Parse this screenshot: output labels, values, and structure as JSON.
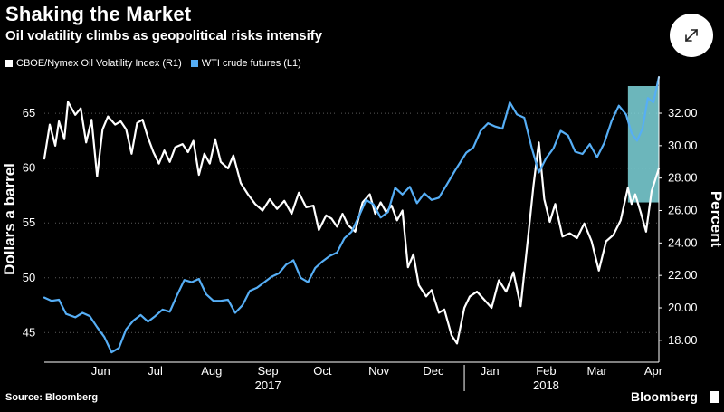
{
  "header": {
    "title": "Shaking the Market",
    "subtitle": "Oil volatility climbs as geopolitical risks intensify"
  },
  "controls": {
    "expand_icon": "expand-arrows-icon"
  },
  "footer": {
    "source": "Source: Bloomberg",
    "brand": "Bloomberg"
  },
  "colors": {
    "background": "#000000",
    "ovx": "#ffffff",
    "wti": "#56aef5",
    "highlight": "#7fd6dc"
  },
  "chart_data": {
    "type": "line",
    "title": "Shaking the Market",
    "subtitle": "Oil volatility climbs as geopolitical risks intensify",
    "grid": "horizontal dotted",
    "legend_position": "top-left",
    "x_start": "2017-05-15",
    "x_end": "2018-04-18",
    "x_ticks": [
      {
        "label": "Jun",
        "date": "2017-06-15"
      },
      {
        "label": "Jul",
        "date": "2017-07-15"
      },
      {
        "label": "Aug",
        "date": "2017-08-15"
      },
      {
        "label": "Sep",
        "date": "2017-09-15"
      },
      {
        "label": "Oct",
        "date": "2017-10-15"
      },
      {
        "label": "Nov",
        "date": "2017-11-15"
      },
      {
        "label": "Dec",
        "date": "2017-12-15"
      },
      {
        "label": "Jan",
        "date": "2018-01-15"
      },
      {
        "label": "Feb",
        "date": "2018-02-15"
      },
      {
        "label": "Mar",
        "date": "2018-03-15"
      },
      {
        "label": "Apr",
        "date": "2018-04-15"
      }
    ],
    "year_labels": [
      {
        "label": "2017",
        "date": "2017-09-15"
      },
      {
        "label": "2018",
        "date": "2018-02-15"
      }
    ],
    "year_divider_date": "2018-01-01",
    "highlight_range": [
      "2018-04-01",
      "2018-04-18"
    ],
    "axes": {
      "left": {
        "label": "Dollars a barrel",
        "min": 42.3,
        "max": 68.4,
        "ticks": [
          45,
          50,
          55,
          60,
          65
        ]
      },
      "right": {
        "label": "Percent",
        "min": 16.65,
        "max": 34.29,
        "ticks": [
          18.0,
          20.0,
          22.0,
          24.0,
          26.0,
          28.0,
          30.0,
          32.0
        ]
      }
    },
    "series": [
      {
        "name": "CBOE/Nymex Oil Volatility Index (R1)",
        "axis": "right",
        "color": "#ffffff",
        "points": [
          [
            "2017-05-15",
            29.2
          ],
          [
            "2017-05-18",
            31.3
          ],
          [
            "2017-05-21",
            30.0
          ],
          [
            "2017-05-23",
            31.5
          ],
          [
            "2017-05-26",
            30.4
          ],
          [
            "2017-05-28",
            32.7
          ],
          [
            "2017-06-01",
            31.9
          ],
          [
            "2017-06-04",
            32.3
          ],
          [
            "2017-06-07",
            30.2
          ],
          [
            "2017-06-10",
            31.6
          ],
          [
            "2017-06-13",
            28.1
          ],
          [
            "2017-06-16",
            31.0
          ],
          [
            "2017-06-19",
            31.8
          ],
          [
            "2017-06-23",
            31.3
          ],
          [
            "2017-06-26",
            31.5
          ],
          [
            "2017-06-29",
            31.0
          ],
          [
            "2017-07-02",
            29.5
          ],
          [
            "2017-07-05",
            31.4
          ],
          [
            "2017-07-08",
            31.6
          ],
          [
            "2017-07-11",
            30.5
          ],
          [
            "2017-07-14",
            29.6
          ],
          [
            "2017-07-17",
            28.9
          ],
          [
            "2017-07-20",
            29.7
          ],
          [
            "2017-07-23",
            29.0
          ],
          [
            "2017-07-26",
            29.9
          ],
          [
            "2017-07-30",
            30.1
          ],
          [
            "2017-08-02",
            29.6
          ],
          [
            "2017-08-05",
            30.3
          ],
          [
            "2017-08-08",
            28.2
          ],
          [
            "2017-08-11",
            29.5
          ],
          [
            "2017-08-14",
            28.9
          ],
          [
            "2017-08-17",
            30.4
          ],
          [
            "2017-08-20",
            29.0
          ],
          [
            "2017-08-24",
            28.6
          ],
          [
            "2017-08-27",
            29.4
          ],
          [
            "2017-08-31",
            27.7
          ],
          [
            "2017-09-04",
            27.0
          ],
          [
            "2017-09-08",
            26.4
          ],
          [
            "2017-09-12",
            26.0
          ],
          [
            "2017-09-16",
            26.7
          ],
          [
            "2017-09-20",
            26.1
          ],
          [
            "2017-09-24",
            26.6
          ],
          [
            "2017-09-28",
            25.8
          ],
          [
            "2017-10-02",
            27.1
          ],
          [
            "2017-10-06",
            26.2
          ],
          [
            "2017-10-10",
            26.3
          ],
          [
            "2017-10-13",
            24.8
          ],
          [
            "2017-10-17",
            25.7
          ],
          [
            "2017-10-20",
            25.5
          ],
          [
            "2017-10-23",
            25.0
          ],
          [
            "2017-10-26",
            25.8
          ],
          [
            "2017-10-29",
            25.1
          ],
          [
            "2017-11-02",
            24.7
          ],
          [
            "2017-11-06",
            26.5
          ],
          [
            "2017-11-10",
            27.0
          ],
          [
            "2017-11-13",
            25.8
          ],
          [
            "2017-11-16",
            26.5
          ],
          [
            "2017-11-19",
            25.9
          ],
          [
            "2017-11-22",
            26.3
          ],
          [
            "2017-11-25",
            25.4
          ],
          [
            "2017-11-28",
            26.0
          ],
          [
            "2017-12-01",
            22.5
          ],
          [
            "2017-12-04",
            23.3
          ],
          [
            "2017-12-07",
            21.4
          ],
          [
            "2017-12-11",
            20.7
          ],
          [
            "2017-12-14",
            21.1
          ],
          [
            "2017-12-18",
            19.7
          ],
          [
            "2017-12-21",
            19.9
          ],
          [
            "2017-12-25",
            18.3
          ],
          [
            "2017-12-28",
            17.8
          ],
          [
            "2018-01-01",
            20.0
          ],
          [
            "2018-01-04",
            20.7
          ],
          [
            "2018-01-08",
            21.0
          ],
          [
            "2018-01-12",
            20.5
          ],
          [
            "2018-01-16",
            20.0
          ],
          [
            "2018-01-20",
            21.7
          ],
          [
            "2018-01-24",
            21.0
          ],
          [
            "2018-01-28",
            22.2
          ],
          [
            "2018-02-01",
            20.1
          ],
          [
            "2018-02-05",
            24.3
          ],
          [
            "2018-02-08",
            27.5
          ],
          [
            "2018-02-11",
            30.2
          ],
          [
            "2018-02-14",
            26.7
          ],
          [
            "2018-02-17",
            25.3
          ],
          [
            "2018-02-20",
            26.4
          ],
          [
            "2018-02-24",
            24.4
          ],
          [
            "2018-02-28",
            24.6
          ],
          [
            "2018-03-04",
            24.3
          ],
          [
            "2018-03-08",
            25.2
          ],
          [
            "2018-03-12",
            24.1
          ],
          [
            "2018-03-16",
            22.3
          ],
          [
            "2018-03-20",
            24.1
          ],
          [
            "2018-03-24",
            24.5
          ],
          [
            "2018-03-28",
            25.4
          ],
          [
            "2018-04-01",
            27.4
          ],
          [
            "2018-04-03",
            26.4
          ],
          [
            "2018-04-05",
            27.0
          ],
          [
            "2018-04-08",
            25.9
          ],
          [
            "2018-04-11",
            24.7
          ],
          [
            "2018-04-14",
            27.2
          ],
          [
            "2018-04-18",
            28.6
          ]
        ]
      },
      {
        "name": "WTI crude futures (L1)",
        "axis": "left",
        "color": "#56aef5",
        "points": [
          [
            "2017-05-15",
            48.2
          ],
          [
            "2017-05-19",
            47.9
          ],
          [
            "2017-05-23",
            48.0
          ],
          [
            "2017-05-27",
            46.7
          ],
          [
            "2017-06-01",
            46.4
          ],
          [
            "2017-06-05",
            46.8
          ],
          [
            "2017-06-09",
            46.5
          ],
          [
            "2017-06-13",
            45.5
          ],
          [
            "2017-06-17",
            44.6
          ],
          [
            "2017-06-21",
            43.2
          ],
          [
            "2017-06-25",
            43.6
          ],
          [
            "2017-06-29",
            45.3
          ],
          [
            "2017-07-03",
            46.1
          ],
          [
            "2017-07-07",
            46.6
          ],
          [
            "2017-07-11",
            46.0
          ],
          [
            "2017-07-15",
            46.5
          ],
          [
            "2017-07-19",
            47.1
          ],
          [
            "2017-07-23",
            46.9
          ],
          [
            "2017-07-27",
            48.4
          ],
          [
            "2017-07-31",
            49.8
          ],
          [
            "2017-08-04",
            49.6
          ],
          [
            "2017-08-08",
            49.9
          ],
          [
            "2017-08-12",
            48.5
          ],
          [
            "2017-08-16",
            47.9
          ],
          [
            "2017-08-20",
            47.9
          ],
          [
            "2017-08-24",
            48.0
          ],
          [
            "2017-08-28",
            46.8
          ],
          [
            "2017-09-01",
            47.5
          ],
          [
            "2017-09-05",
            48.8
          ],
          [
            "2017-09-09",
            49.1
          ],
          [
            "2017-09-13",
            49.6
          ],
          [
            "2017-09-17",
            50.1
          ],
          [
            "2017-09-21",
            50.4
          ],
          [
            "2017-09-25",
            51.2
          ],
          [
            "2017-09-29",
            51.6
          ],
          [
            "2017-10-03",
            50.0
          ],
          [
            "2017-10-07",
            49.6
          ],
          [
            "2017-10-11",
            50.9
          ],
          [
            "2017-10-15",
            51.5
          ],
          [
            "2017-10-19",
            52.0
          ],
          [
            "2017-10-23",
            52.3
          ],
          [
            "2017-10-27",
            53.6
          ],
          [
            "2017-10-31",
            54.2
          ],
          [
            "2017-11-04",
            55.6
          ],
          [
            "2017-11-08",
            57.1
          ],
          [
            "2017-11-12",
            56.7
          ],
          [
            "2017-11-16",
            55.5
          ],
          [
            "2017-11-20",
            56.0
          ],
          [
            "2017-11-24",
            58.2
          ],
          [
            "2017-11-28",
            57.6
          ],
          [
            "2017-12-02",
            58.3
          ],
          [
            "2017-12-06",
            56.8
          ],
          [
            "2017-12-10",
            57.7
          ],
          [
            "2017-12-14",
            57.1
          ],
          [
            "2017-12-18",
            57.3
          ],
          [
            "2017-12-22",
            58.4
          ],
          [
            "2017-12-27",
            59.8
          ],
          [
            "2018-01-02",
            61.4
          ],
          [
            "2018-01-06",
            61.9
          ],
          [
            "2018-01-10",
            63.4
          ],
          [
            "2018-01-14",
            64.1
          ],
          [
            "2018-01-18",
            63.8
          ],
          [
            "2018-01-22",
            63.6
          ],
          [
            "2018-01-26",
            66.0
          ],
          [
            "2018-01-30",
            64.9
          ],
          [
            "2018-02-03",
            64.6
          ],
          [
            "2018-02-07",
            61.9
          ],
          [
            "2018-02-11",
            59.6
          ],
          [
            "2018-02-15",
            60.9
          ],
          [
            "2018-02-19",
            61.8
          ],
          [
            "2018-02-23",
            63.4
          ],
          [
            "2018-02-27",
            63.0
          ],
          [
            "2018-03-03",
            61.5
          ],
          [
            "2018-03-07",
            61.3
          ],
          [
            "2018-03-11",
            62.2
          ],
          [
            "2018-03-15",
            61.0
          ],
          [
            "2018-03-19",
            62.3
          ],
          [
            "2018-03-23",
            64.3
          ],
          [
            "2018-03-27",
            65.7
          ],
          [
            "2018-03-31",
            64.9
          ],
          [
            "2018-04-03",
            63.2
          ],
          [
            "2018-04-06",
            62.5
          ],
          [
            "2018-04-09",
            63.6
          ],
          [
            "2018-04-12",
            66.4
          ],
          [
            "2018-04-15",
            66.0
          ],
          [
            "2018-04-18",
            68.3
          ]
        ]
      }
    ]
  }
}
